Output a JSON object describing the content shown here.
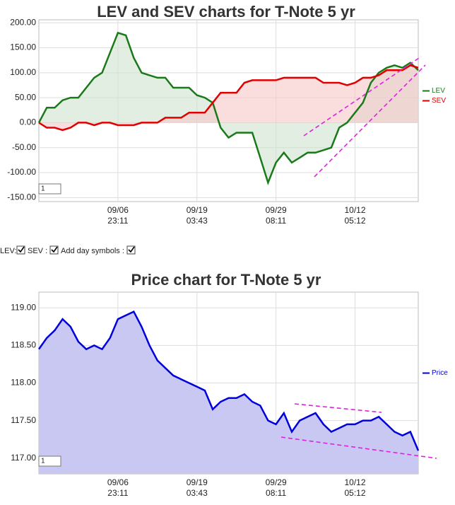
{
  "chart_data": [
    {
      "type": "line",
      "title": "LEV and SEV charts for T-Note 5 yr",
      "categories": [
        null,
        null,
        null,
        null,
        null,
        null,
        null,
        null,
        null,
        null,
        "09/06 23:11",
        null,
        null,
        null,
        null,
        null,
        null,
        null,
        null,
        null,
        "09/19 03:43",
        null,
        null,
        null,
        null,
        null,
        null,
        null,
        null,
        null,
        "09/29 08:11",
        null,
        null,
        null,
        null,
        null,
        null,
        null,
        null,
        null,
        "10/12 05:12",
        null,
        null,
        null,
        null,
        null,
        null,
        null,
        null
      ],
      "series": [
        {
          "name": "LEV",
          "color": "#1a7a1a",
          "fill": "#cfe3cf",
          "values": [
            0,
            30,
            30,
            45,
            50,
            50,
            70,
            90,
            100,
            140,
            180,
            175,
            130,
            100,
            95,
            90,
            90,
            70,
            70,
            70,
            55,
            50,
            40,
            -10,
            -30,
            -20,
            -20,
            -20,
            -70,
            -120,
            -80,
            -60,
            -80,
            -70,
            -60,
            -60,
            -55,
            -50,
            -10,
            0,
            20,
            40,
            80,
            100,
            110,
            115,
            110,
            120,
            105
          ]
        },
        {
          "name": "SEV",
          "color": "#e00000",
          "fill": "#f6c8c8",
          "values": [
            0,
            -10,
            -10,
            -15,
            -10,
            0,
            0,
            -5,
            0,
            0,
            -5,
            -5,
            -5,
            0,
            0,
            0,
            10,
            10,
            10,
            20,
            20,
            20,
            40,
            60,
            60,
            60,
            80,
            85,
            85,
            85,
            85,
            90,
            90,
            90,
            90,
            90,
            80,
            80,
            80,
            75,
            80,
            90,
            90,
            95,
            105,
            105,
            105,
            115,
            110
          ]
        }
      ],
      "ylim": [
        -158,
        206
      ],
      "yticks": [
        {
          "value": 200,
          "label": "200.00"
        },
        {
          "value": 150,
          "label": "150.00"
        },
        {
          "value": 100,
          "label": "100.00"
        },
        {
          "value": 50,
          "label": "50.00"
        },
        {
          "value": 0,
          "label": "0.00"
        },
        {
          "value": -50,
          "label": "-50.00"
        },
        {
          "value": -100,
          "label": "-100.00"
        },
        {
          "value": -150,
          "label": "-150.00"
        }
      ],
      "grid": true,
      "legend": "right",
      "input": "1"
    },
    {
      "type": "area",
      "title": "Price chart for T-Note 5 yr",
      "categories": [
        null,
        null,
        null,
        null,
        null,
        null,
        null,
        null,
        null,
        null,
        "09/06 23:11",
        null,
        null,
        null,
        null,
        null,
        null,
        null,
        null,
        null,
        "09/19 03:43",
        null,
        null,
        null,
        null,
        null,
        null,
        null,
        null,
        null,
        "09/29 08:11",
        null,
        null,
        null,
        null,
        null,
        null,
        null,
        null,
        null,
        "10/12 05:12",
        null,
        null,
        null,
        null,
        null,
        null,
        null,
        null
      ],
      "series": [
        {
          "name": "Price",
          "color": "#0000dd",
          "fill": "#c8c8f2",
          "values": [
            118.45,
            118.6,
            118.7,
            118.85,
            118.75,
            118.55,
            118.45,
            118.5,
            118.45,
            118.6,
            118.85,
            118.9,
            118.95,
            118.75,
            118.5,
            118.3,
            118.2,
            118.1,
            118.05,
            118.0,
            117.95,
            117.9,
            117.65,
            117.75,
            117.8,
            117.8,
            117.85,
            117.75,
            117.7,
            117.5,
            117.45,
            117.6,
            117.35,
            117.5,
            117.55,
            117.6,
            117.45,
            117.35,
            117.4,
            117.45,
            117.45,
            117.5,
            117.5,
            117.55,
            117.45,
            117.35,
            117.3,
            117.35,
            117.1
          ]
        }
      ],
      "ylim": [
        116.79,
        119.21
      ],
      "yticks": [
        {
          "value": 117,
          "label": "117.00"
        },
        {
          "value": 117.5,
          "label": "117.50"
        },
        {
          "value": 118,
          "label": "118.00"
        },
        {
          "value": 118.5,
          "label": "118.50"
        },
        {
          "value": 119,
          "label": "119.00"
        }
      ],
      "grid": true,
      "legend": "right",
      "input": "1"
    }
  ],
  "controls": {
    "lev": "LEV:",
    "sev": "SEV :",
    "day": "Add day symbols :"
  }
}
